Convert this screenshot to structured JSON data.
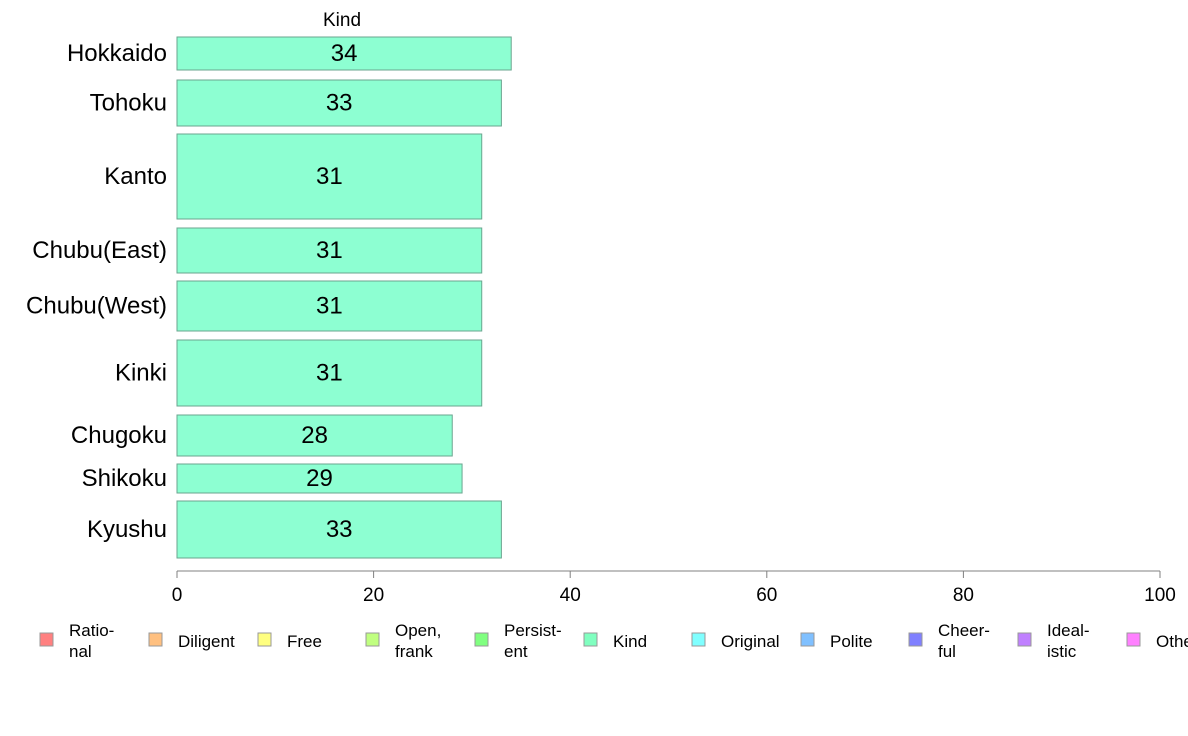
{
  "chart_data": {
    "type": "bar",
    "orientation": "horizontal",
    "stacked": true,
    "xlim": [
      0,
      100
    ],
    "x_ticks": [
      0,
      20,
      40,
      60,
      80,
      100
    ],
    "grid": false,
    "legend_placement": "bottom",
    "categories": [
      "Hokkaido",
      "Tohoku",
      "Kanto",
      "Chubu(East)",
      "Chubu(West)",
      "Kinki",
      "Chugoku",
      "Shikoku",
      "Kyushu"
    ],
    "series": [
      {
        "name": "Kind",
        "color": "#8dffd2",
        "values": [
          34,
          33,
          31,
          31,
          31,
          31,
          28,
          29,
          33
        ],
        "value_labels": [
          "34",
          "33",
          "31",
          "31",
          "31",
          "31",
          "28",
          "29",
          "33"
        ]
      }
    ],
    "legend": [
      {
        "lines": [
          "Ratio-",
          "nal"
        ],
        "color": "#ff8080"
      },
      {
        "lines": [
          "Diligent"
        ],
        "color": "#ffc080"
      },
      {
        "lines": [
          "Free"
        ],
        "color": "#ffff80"
      },
      {
        "lines": [
          "Open,",
          "frank"
        ],
        "color": "#c0ff80"
      },
      {
        "lines": [
          "Persist-",
          "ent"
        ],
        "color": "#80ff80"
      },
      {
        "lines": [
          "Kind"
        ],
        "color": "#80ffc0"
      },
      {
        "lines": [
          "Original"
        ],
        "color": "#80ffff"
      },
      {
        "lines": [
          "Polite"
        ],
        "color": "#80c0ff"
      },
      {
        "lines": [
          "Cheer-",
          "ful"
        ],
        "color": "#8080ff"
      },
      {
        "lines": [
          "Ideal-",
          "istic"
        ],
        "color": "#c080ff"
      },
      {
        "lines": [
          "Othe"
        ],
        "color": "#ff80ff"
      }
    ]
  }
}
